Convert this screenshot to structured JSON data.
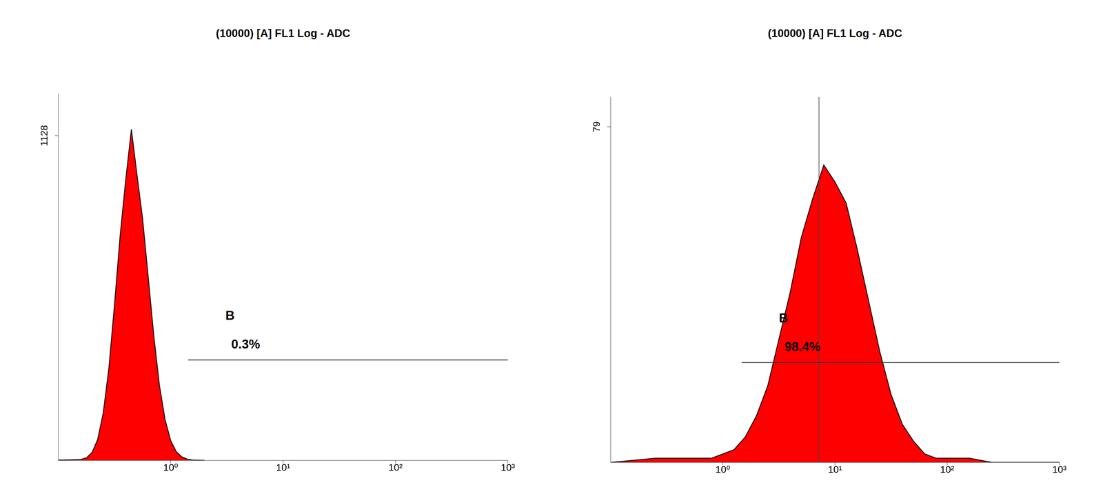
{
  "chart_data": [
    {
      "type": "area",
      "title": "(10000) [A] FL1 Log - ADC",
      "log": "x",
      "color": "#ff0000",
      "x": [
        0.1,
        0.158,
        0.178,
        0.2,
        0.224,
        0.251,
        0.282,
        0.316,
        0.355,
        0.398,
        0.447,
        0.501,
        0.562,
        0.631,
        0.708,
        0.794,
        0.891,
        1,
        1.122,
        1.259,
        1.413,
        1.585,
        2
      ],
      "values": [
        1,
        3,
        9,
        28,
        73,
        165,
        322,
        540,
        781,
        975,
        1150,
        993,
        841,
        637,
        432,
        261,
        142,
        69,
        30,
        12,
        4,
        1,
        0
      ],
      "xlim": [
        0.1,
        1000
      ],
      "xticks": [
        {
          "value": 1,
          "label": "10⁰"
        },
        {
          "value": 10,
          "label": "10¹"
        },
        {
          "value": 100,
          "label": "10²"
        },
        {
          "value": 1000,
          "label": "10³"
        }
      ],
      "ylim": [
        0,
        1274
      ],
      "yticks": [
        1128
      ],
      "gates": [
        {
          "name": "B",
          "label": "0.3%",
          "value": 0.3,
          "x": [
            1.43,
            1000
          ],
          "level": 349
        }
      ]
    },
    {
      "type": "area",
      "title": "(10000) [A] FL1 Log - ADC",
      "log": "x",
      "color": "#ff0000",
      "x": [
        0.1,
        0.251,
        0.398,
        0.631,
        0.794,
        1,
        1.259,
        1.585,
        1.995,
        2.512,
        3.162,
        3.981,
        5.012,
        6.31,
        7.943,
        10,
        12.59,
        15.85,
        19.95,
        25.12,
        31.62,
        39.81,
        50.12,
        63.1,
        79.43,
        100,
        158.5,
        251.2,
        1000
      ],
      "values": [
        0,
        1,
        1,
        1,
        1,
        2,
        3,
        6,
        11,
        18,
        29,
        40,
        53,
        62,
        70,
        66,
        61,
        50,
        38,
        26,
        16,
        9,
        5,
        2,
        1,
        1,
        1,
        0,
        0
      ],
      "xlim": [
        0.1,
        1000
      ],
      "xticks": [
        {
          "value": 1,
          "label": "10⁰"
        },
        {
          "value": 10,
          "label": "10¹"
        },
        {
          "value": 100,
          "label": "10²"
        },
        {
          "value": 1000,
          "label": "10³"
        }
      ],
      "ylim": [
        0,
        86
      ],
      "yticks": [
        79
      ],
      "marker_x": 7.2,
      "gates": [
        {
          "name": "B",
          "label": "98.4%",
          "value": 98.4,
          "x": [
            1.47,
            1000
          ],
          "level": 23.5
        }
      ]
    }
  ]
}
